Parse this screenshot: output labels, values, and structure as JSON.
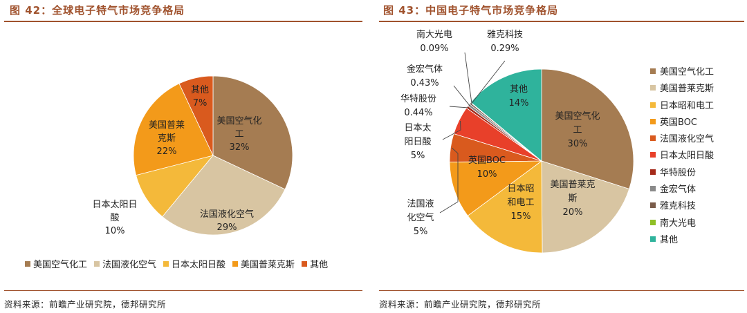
{
  "left": {
    "title": "图 42：全球电子特气市场竞争格局",
    "source": "资料来源：前瞻产业研究院，德邦研究所",
    "legend": [
      "美国空气化工",
      "法国液化空气",
      "日本太阳日酸",
      "美国普莱克斯",
      "其他"
    ],
    "chart_data": {
      "type": "pie",
      "title": "",
      "slices": [
        {
          "label": "美国空气化工",
          "value": 32,
          "pct": "32%",
          "color": "#a57c52"
        },
        {
          "label": "法国液化空气",
          "value": 29,
          "pct": "29%",
          "color": "#d8c5a2"
        },
        {
          "label": "日本太阳日酸",
          "value": 10,
          "pct": "10%",
          "color": "#f4b93a"
        },
        {
          "label": "美国普莱克斯",
          "value": 22,
          "pct": "22%",
          "color": "#f39a1a"
        },
        {
          "label": "其他",
          "value": 7,
          "pct": "7%",
          "color": "#d95a1e"
        }
      ]
    }
  },
  "right": {
    "title": "图 43：中国电子特气市场竞争格局",
    "source": "资料来源：前瞻产业研究院，德邦研究所",
    "legend": [
      "美国空气化工",
      "美国普莱克斯",
      "日本昭和电工",
      "英国BOC",
      "法国液化空气",
      "日本太阳日酸",
      "华特股份",
      "金宏气体",
      "雅克科技",
      "南大光电",
      "其他"
    ],
    "chart_data": {
      "type": "pie",
      "title": "",
      "slices": [
        {
          "label": "美国空气化工",
          "value": 30,
          "pct": "30%",
          "color": "#a57c52"
        },
        {
          "label": "美国普莱克斯",
          "value": 20,
          "pct": "20%",
          "color": "#d8c5a2"
        },
        {
          "label": "日本昭和电工",
          "value": 15,
          "pct": "15%",
          "color": "#f4b93a"
        },
        {
          "label": "英国BOC",
          "value": 10,
          "pct": "10%",
          "color": "#f39a1a"
        },
        {
          "label": "法国液化空气",
          "value": 5,
          "pct": "5%",
          "color": "#d95a1e"
        },
        {
          "label": "日本太阳日酸",
          "value": 5,
          "pct": "5%",
          "color": "#e8402a"
        },
        {
          "label": "华特股份",
          "value": 0.44,
          "pct": "0.44%",
          "color": "#a52a1a"
        },
        {
          "label": "金宏气体",
          "value": 0.43,
          "pct": "0.43%",
          "color": "#8a8a8a"
        },
        {
          "label": "雅克科技",
          "value": 0.29,
          "pct": "0.29%",
          "color": "#7a5c4a"
        },
        {
          "label": "南大光电",
          "value": 0.09,
          "pct": "0.09%",
          "color": "#8fbf26"
        },
        {
          "label": "其他",
          "value": 14,
          "pct": "14%",
          "color": "#2fb39c"
        }
      ]
    }
  }
}
